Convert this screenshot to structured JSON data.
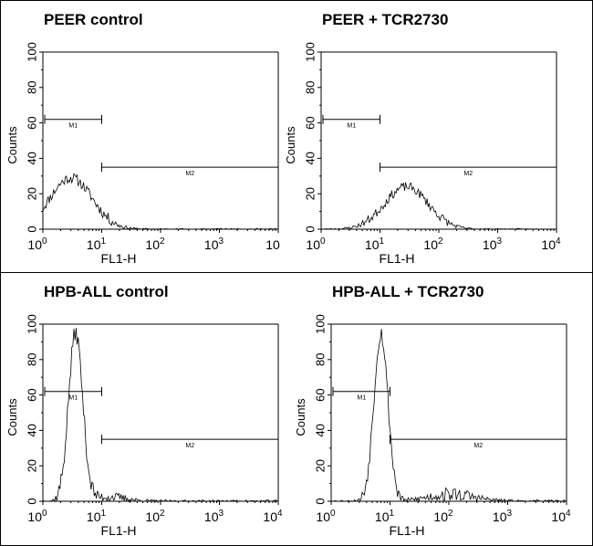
{
  "chart_data": [
    {
      "type": "histogram",
      "title": "PEER control",
      "xlabel": "FL1-H",
      "ylabel": "Counts",
      "xscale": "log",
      "xlim": [
        1,
        10000
      ],
      "ylim": [
        0,
        100
      ],
      "yticks": [
        "0",
        "20",
        "40",
        "60",
        "80",
        "100"
      ],
      "xticks": [
        {
          "base": "10",
          "exp": "0"
        },
        {
          "base": "10",
          "exp": "1"
        },
        {
          "base": "10",
          "exp": "2"
        },
        {
          "base": "10",
          "exp": "3"
        },
        {
          "base": "10",
          "exp": ""
        }
      ],
      "markers": [
        {
          "label": "M1",
          "range": [
            1,
            10
          ],
          "y": 62
        },
        {
          "label": "M2",
          "range": [
            10,
            10000
          ],
          "y": 35
        }
      ],
      "histogram": {
        "center": 3.0,
        "sigma": 0.36,
        "peak": 29,
        "noise": 3.0,
        "seed": 11,
        "tail": []
      }
    },
    {
      "type": "histogram",
      "title": "PEER + TCR2730",
      "xlabel": "FL1-H",
      "ylabel": "Counts",
      "xscale": "log",
      "xlim": [
        1,
        10000
      ],
      "ylim": [
        0,
        100
      ],
      "yticks": [
        "0",
        "20",
        "40",
        "60",
        "80",
        "100"
      ],
      "xticks": [
        {
          "base": "10",
          "exp": "0"
        },
        {
          "base": "10",
          "exp": "1"
        },
        {
          "base": "10",
          "exp": "2"
        },
        {
          "base": "10",
          "exp": "3"
        },
        {
          "base": "10",
          "exp": "4"
        }
      ],
      "markers": [
        {
          "label": "M1",
          "range": [
            1,
            10
          ],
          "y": 62
        },
        {
          "label": "M2",
          "range": [
            10,
            10000
          ],
          "y": 35
        }
      ],
      "histogram": {
        "center": 28,
        "sigma": 0.37,
        "peak": 24,
        "noise": 2.6,
        "seed": 23,
        "tail": []
      }
    },
    {
      "type": "histogram",
      "title": "HPB-ALL control",
      "xlabel": "FL1-H",
      "ylabel": "Counts",
      "xscale": "log",
      "xlim": [
        1,
        10000
      ],
      "ylim": [
        0,
        100
      ],
      "yticks": [
        "0",
        "20",
        "40",
        "60",
        "80",
        "100"
      ],
      "xticks": [
        {
          "base": "10",
          "exp": "0"
        },
        {
          "base": "10",
          "exp": "1"
        },
        {
          "base": "10",
          "exp": "2"
        },
        {
          "base": "10",
          "exp": "3"
        },
        {
          "base": "10",
          "exp": "4"
        }
      ],
      "markers": [
        {
          "label": "M1",
          "range": [
            1,
            10
          ],
          "y": 62
        },
        {
          "label": "M2",
          "range": [
            10,
            10000
          ],
          "y": 35
        }
      ],
      "histogram": {
        "center": 3.6,
        "sigma": 0.12,
        "peak": 95,
        "noise": 5.0,
        "seed": 37,
        "tail": [
          {
            "center": 13,
            "sigma": 0.3,
            "peak": 2.5
          }
        ]
      }
    },
    {
      "type": "histogram",
      "title": "HPB-ALL + TCR2730",
      "xlabel": "FL1-H",
      "ylabel": "Counts",
      "xscale": "log",
      "xlim": [
        1,
        10000
      ],
      "ylim": [
        0,
        100
      ],
      "yticks": [
        "0",
        "20",
        "40",
        "60",
        "80",
        "100"
      ],
      "xticks": [
        {
          "base": "10",
          "exp": "0"
        },
        {
          "base": "10",
          "exp": "1"
        },
        {
          "base": "10",
          "exp": "2"
        },
        {
          "base": "10",
          "exp": "3"
        },
        {
          "base": "10",
          "exp": "4"
        }
      ],
      "markers": [
        {
          "label": "M1",
          "range": [
            1,
            10
          ],
          "y": 62
        },
        {
          "label": "M2",
          "range": [
            10,
            10000
          ],
          "y": 35
        }
      ],
      "histogram": {
        "center": 7.0,
        "sigma": 0.12,
        "peak": 95,
        "noise": 5.0,
        "seed": 53,
        "tail": [
          {
            "center": 110,
            "sigma": 0.38,
            "peak": 4
          }
        ]
      }
    }
  ]
}
